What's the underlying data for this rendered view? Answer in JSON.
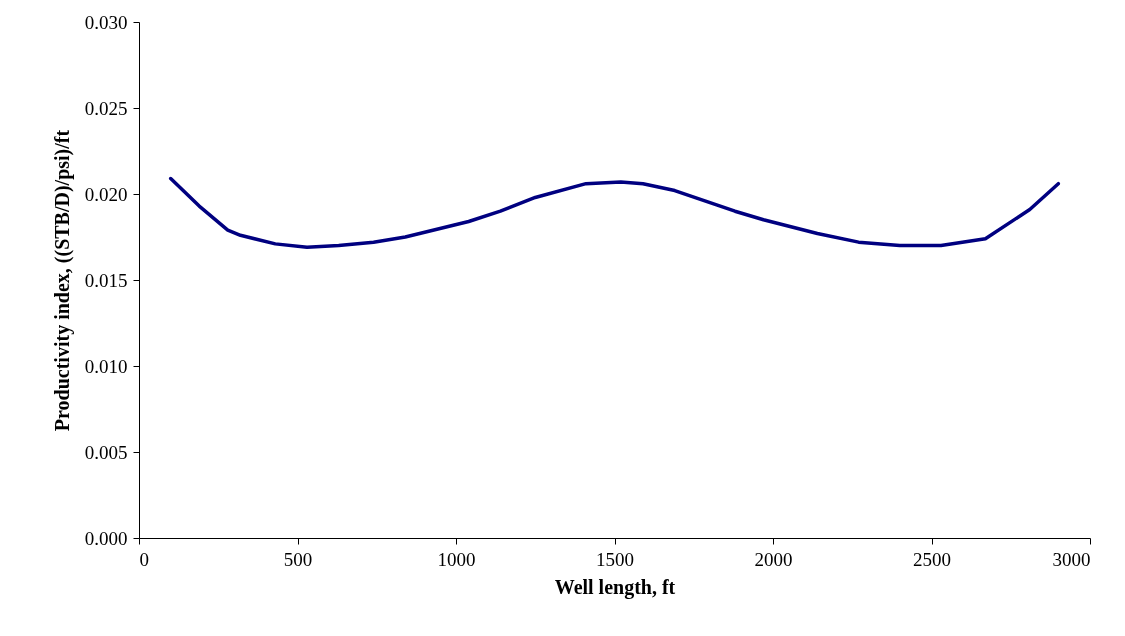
{
  "chart_data": {
    "type": "line",
    "xlabel": "Well length, ft",
    "ylabel": "Productivity index, ((STB/D)/psi)/ft",
    "x": [
      100,
      190,
      280,
      320,
      430,
      530,
      630,
      740,
      840,
      1040,
      1140,
      1250,
      1410,
      1520,
      1590,
      1690,
      1880,
      1970,
      2140,
      2270,
      2400,
      2530,
      2670,
      2810,
      2900
    ],
    "series": [
      {
        "color": "#000080",
        "values": [
          0.0209,
          0.0193,
          0.0179,
          0.0176,
          0.0171,
          0.0169,
          0.017,
          0.0172,
          0.0175,
          0.0184,
          0.019,
          0.0198,
          0.0206,
          0.0207,
          0.0206,
          0.0202,
          0.019,
          0.0185,
          0.0177,
          0.0172,
          0.017,
          0.017,
          0.0174,
          0.0191,
          0.0206
        ]
      }
    ],
    "xlim": [
      0,
      3000
    ],
    "xticks": [
      0,
      500,
      1000,
      1500,
      2000,
      2500,
      3000
    ],
    "ylim": [
      0,
      0.03
    ],
    "yticks": [
      {
        "value": 0,
        "label": "0.000"
      },
      {
        "value": 0.005,
        "label": "0.005"
      },
      {
        "value": 0.01,
        "label": "0.010"
      },
      {
        "value": 0.015,
        "label": "0.015"
      },
      {
        "value": 0.02,
        "label": "0.020"
      },
      {
        "value": 0.025,
        "label": "0.025"
      },
      {
        "value": 0.03,
        "label": "0.030"
      }
    ],
    "grid": false,
    "marker": "none",
    "line_style": "solid"
  }
}
